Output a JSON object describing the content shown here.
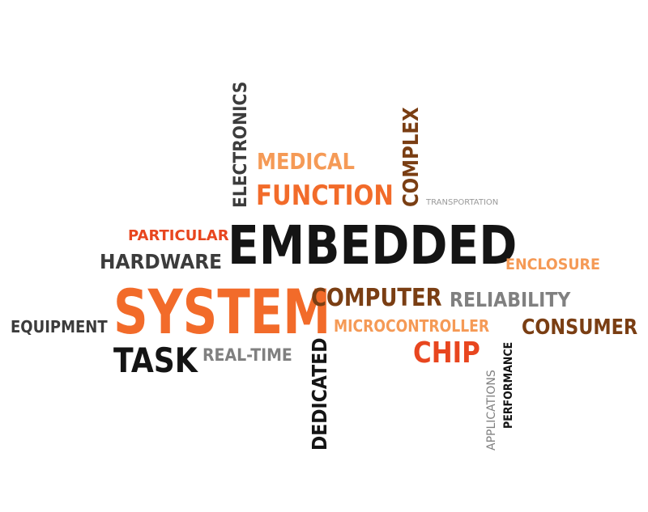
{
  "words": {
    "embedded": "EMBEDDED",
    "system": "SYSTEM",
    "function": "FUNCTION",
    "medical": "MEDICAL",
    "electronics": "ELECTRONICS",
    "complex": "COMPLEX",
    "transportation": "TRANSPORTATION",
    "particular": "PARTICULAR",
    "hardware": "HARDWARE",
    "enclosure": "ENCLOSURE",
    "computer": "COMPUTER",
    "reliability": "RELIABILITY",
    "microcontroller": "MICROCONTROLLER",
    "consumer": "CONSUMER",
    "equipment": "EQUIPMENT",
    "task": "TASK",
    "real_time": "REAL-TIME",
    "dedicated": "DEDICATED",
    "chip": "CHIP",
    "applications": "APPLICATIONS",
    "performance": "PERFORMANCE"
  },
  "colors": {
    "black": "#141414",
    "dark_gray": "#3c3c3c",
    "gray": "#808080",
    "orange": "#f26b2a",
    "light_orange": "#f59a56",
    "red": "#e8461f",
    "brown": "#7a3e13"
  }
}
